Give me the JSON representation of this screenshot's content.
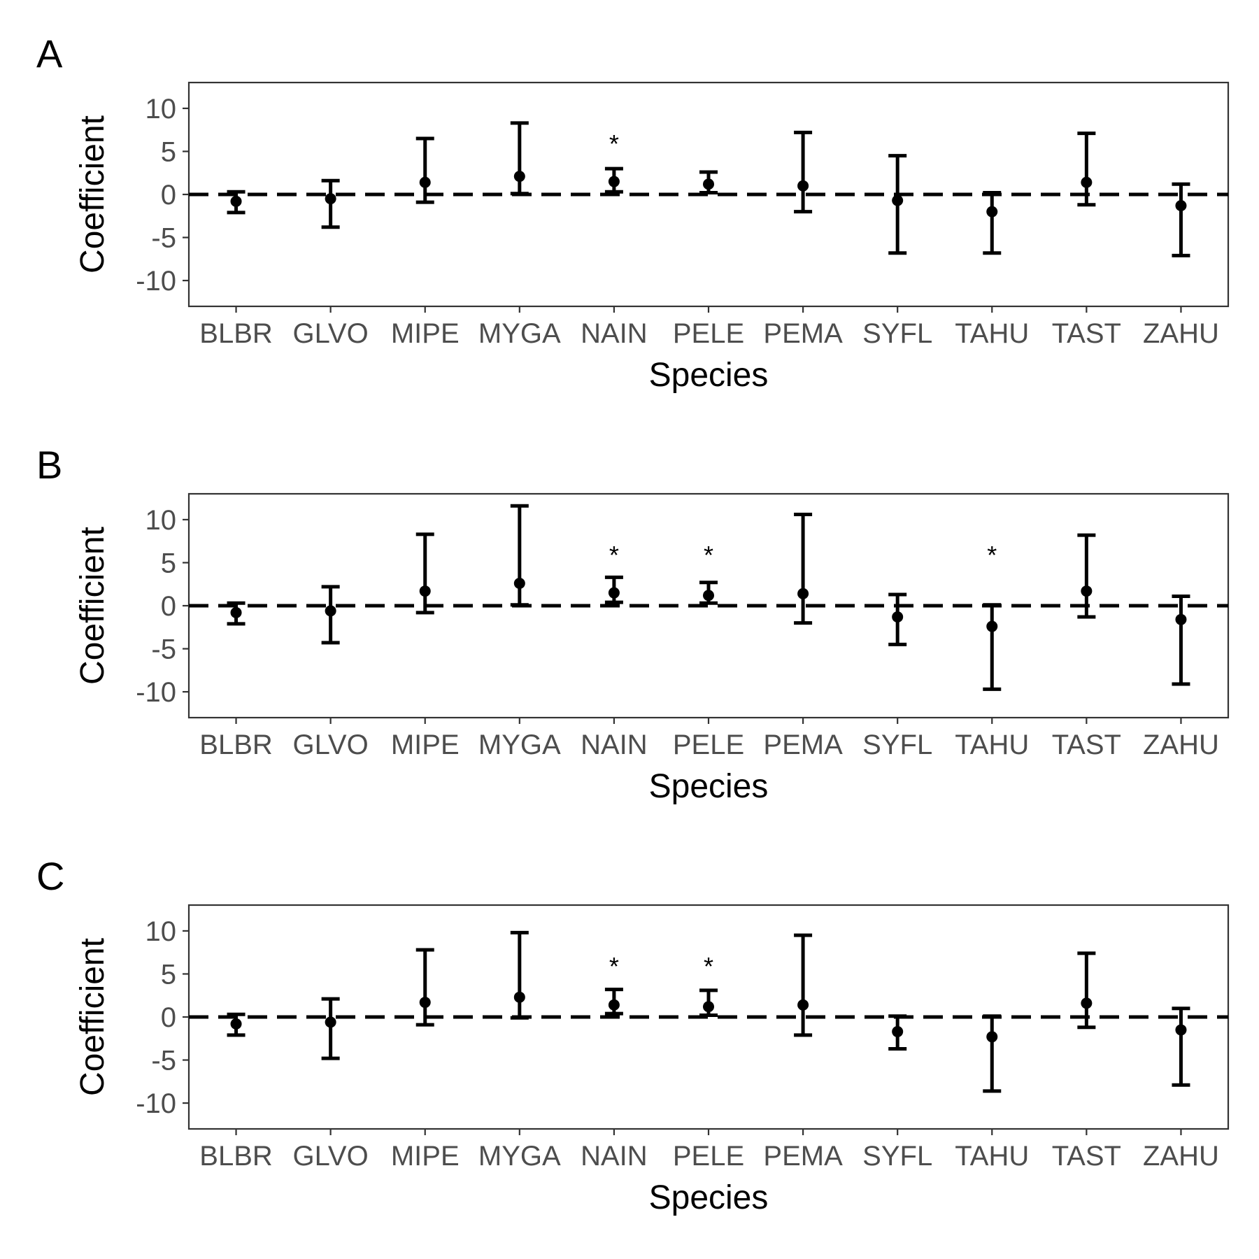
{
  "chart_data": [
    {
      "type": "errorbar",
      "panel_label": "A",
      "xlabel": "Species",
      "ylabel": "Coefficient",
      "ylim": [
        -13,
        13
      ],
      "yticks": [
        10,
        5,
        0,
        -5,
        -10
      ],
      "ytick_labels": [
        "10",
        "5",
        "0",
        "-5",
        "-10"
      ],
      "reference_line": 0,
      "categories": [
        "BLBR",
        "GLVO",
        "MIPE",
        "MYGA",
        "NAIN",
        "PELE",
        "PEMA",
        "SYFL",
        "TAHU",
        "TAST",
        "ZAHU"
      ],
      "estimate": [
        -0.8,
        -0.5,
        1.4,
        2.1,
        1.5,
        1.2,
        1.0,
        -0.7,
        -2.0,
        1.4,
        -1.3
      ],
      "lower": [
        -2.1,
        -3.8,
        -0.9,
        0.1,
        0.3,
        0.2,
        -2.0,
        -6.8,
        -6.8,
        -1.2,
        -7.1
      ],
      "upper": [
        0.3,
        1.6,
        6.5,
        8.3,
        3.0,
        2.6,
        7.2,
        4.5,
        0.2,
        7.1,
        1.2
      ],
      "significance": [
        "",
        "",
        "",
        "",
        "*",
        "",
        "",
        "",
        "",
        "",
        ""
      ],
      "legend": "none"
    },
    {
      "type": "errorbar",
      "panel_label": "B",
      "xlabel": "Species",
      "ylabel": "Coefficient",
      "ylim": [
        -13,
        13
      ],
      "yticks": [
        10,
        5,
        0,
        -5,
        -10
      ],
      "ytick_labels": [
        "10",
        "5",
        "0",
        "-5",
        "-10"
      ],
      "reference_line": 0,
      "categories": [
        "BLBR",
        "GLVO",
        "MIPE",
        "MYGA",
        "NAIN",
        "PELE",
        "PEMA",
        "SYFL",
        "TAHU",
        "TAST",
        "ZAHU"
      ],
      "estimate": [
        -0.8,
        -0.6,
        1.7,
        2.6,
        1.5,
        1.2,
        1.4,
        -1.3,
        -2.4,
        1.7,
        -1.6
      ],
      "lower": [
        -2.1,
        -4.3,
        -0.8,
        0.1,
        0.4,
        0.3,
        -2.0,
        -4.5,
        -9.7,
        -1.3,
        -9.1
      ],
      "upper": [
        0.3,
        2.2,
        8.3,
        11.6,
        3.3,
        2.7,
        10.6,
        1.3,
        0.1,
        8.2,
        1.1
      ],
      "significance": [
        "",
        "",
        "",
        "",
        "*",
        "*",
        "",
        "",
        "*",
        "",
        ""
      ],
      "legend": "none"
    },
    {
      "type": "errorbar",
      "panel_label": "C",
      "xlabel": "Species",
      "ylabel": "Coefficient",
      "ylim": [
        -13,
        13
      ],
      "yticks": [
        10,
        5,
        0,
        -5,
        -10
      ],
      "ytick_labels": [
        "10",
        "5",
        "0",
        "-5",
        "-10"
      ],
      "reference_line": 0,
      "categories": [
        "BLBR",
        "GLVO",
        "MIPE",
        "MYGA",
        "NAIN",
        "PELE",
        "PEMA",
        "SYFL",
        "TAHU",
        "TAST",
        "ZAHU"
      ],
      "estimate": [
        -0.8,
        -0.6,
        1.7,
        2.3,
        1.4,
        1.2,
        1.4,
        -1.7,
        -2.3,
        1.6,
        -1.5
      ],
      "lower": [
        -2.1,
        -4.8,
        -0.9,
        -0.1,
        0.4,
        0.2,
        -2.1,
        -3.7,
        -8.6,
        -1.2,
        -7.9
      ],
      "upper": [
        0.3,
        2.1,
        7.8,
        9.8,
        3.2,
        3.1,
        9.5,
        0.1,
        0.1,
        7.4,
        1.0
      ],
      "significance": [
        "",
        "",
        "",
        "",
        "*",
        "*",
        "",
        "",
        "",
        "",
        ""
      ],
      "legend": "none"
    }
  ]
}
